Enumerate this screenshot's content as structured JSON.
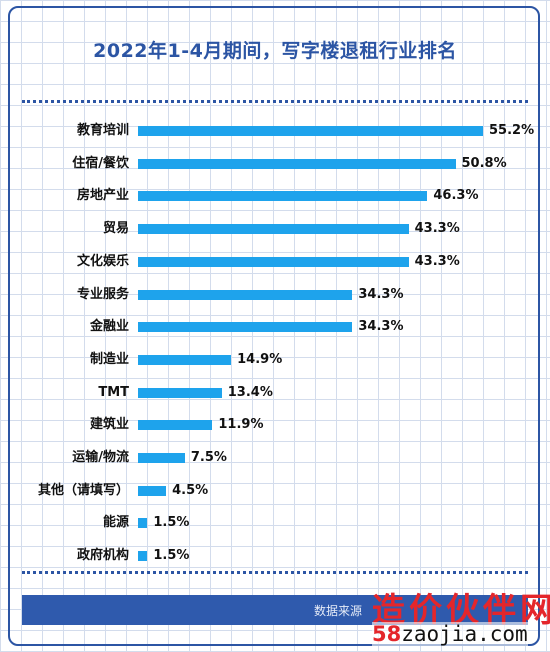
{
  "chart_data": {
    "type": "bar",
    "orientation": "horizontal",
    "title": "2022年1-4月期间，写字楼退租行业排名",
    "categories": [
      "教育培训",
      "住宿/餐饮",
      "房地产业",
      "贸易",
      "文化娱乐",
      "专业服务",
      "金融业",
      "制造业",
      "TMT",
      "建筑业",
      "运输/物流",
      "其他（请填写）",
      "能源",
      "政府机构"
    ],
    "values": [
      55.2,
      50.8,
      46.3,
      43.3,
      43.3,
      34.3,
      34.3,
      14.9,
      13.4,
      11.9,
      7.5,
      4.5,
      1.5,
      1.5
    ],
    "value_labels": [
      "55.2%",
      "50.8%",
      "46.3%",
      "43.3%",
      "43.3%",
      "34.3%",
      "34.3%",
      "14.9%",
      "13.4%",
      "11.9%",
      "7.5%",
      "4.5%",
      "1.5%",
      "1.5%"
    ],
    "unit": "%",
    "bar_color": "#1ea3ec",
    "grid": true,
    "legend": "none"
  },
  "footer": {
    "source_label": "数据来源"
  },
  "watermark": {
    "brand": "造价伙伴网",
    "url_prefix": "58",
    "url_rest": "zaojia.com"
  },
  "colors": {
    "accent": "#2c55a4",
    "bar": "#1ea3ec",
    "watermark": "#e4262b"
  }
}
